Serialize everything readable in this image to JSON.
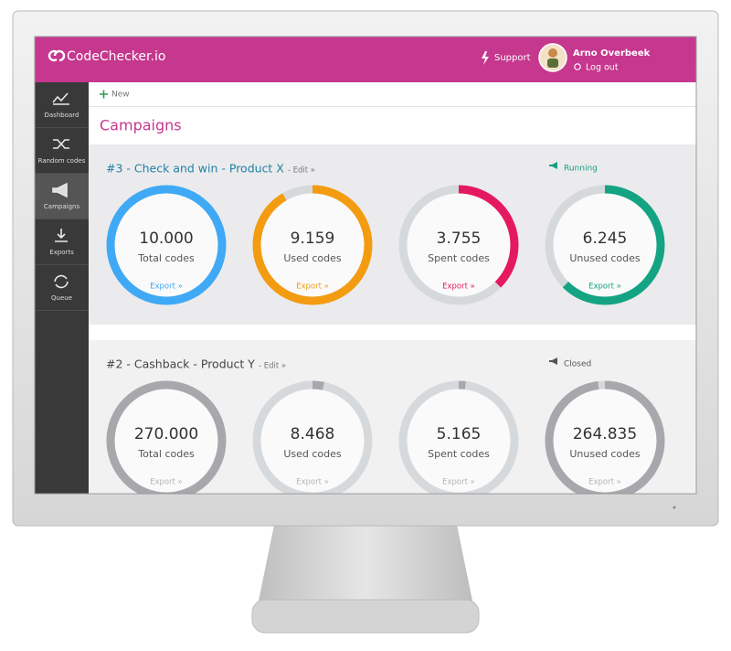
{
  "header": {
    "brand": "CodeChecker.io",
    "support": "Support",
    "user": "Arno Overbeek",
    "logout": "Log out"
  },
  "sidebar": [
    "Dashboard",
    "Random codes",
    "Campaigns",
    "Exports",
    "Queue"
  ],
  "toolbar": {
    "new": "New"
  },
  "page_title": "Campaigns",
  "campaigns": [
    {
      "title": "#3 - Check and win - Product X",
      "edit": "- Edit »",
      "status": "Running",
      "title_color": "#1f7fa6",
      "status_color": "#16a085",
      "stats": [
        {
          "value": "10.000",
          "label": "Total codes",
          "action": "Export »",
          "color": "#3fa9f5"
        },
        {
          "value": "9.159",
          "label": "Used codes",
          "action": "Export »",
          "color": "#f39c12"
        },
        {
          "value": "3.755",
          "label": "Spent codes",
          "action": "Export »",
          "color": "#e5195f"
        },
        {
          "value": "6.245",
          "label": "Unused codes",
          "action": "Export »",
          "color": "#15a483"
        }
      ]
    },
    {
      "title": "#2 - Cashback - Product Y",
      "edit": "- Edit »",
      "status": "Closed",
      "title_color": "#444444",
      "status_color": "#555555",
      "stats": [
        {
          "value": "270.000",
          "label": "Total codes",
          "action": "Export »",
          "color": "#a8a8ac"
        },
        {
          "value": "8.468",
          "label": "Used codes",
          "action": "Export »",
          "color": "#a8a8ac"
        },
        {
          "value": "5.165",
          "label": "Spent codes",
          "action": "Export »",
          "color": "#a8a8ac"
        },
        {
          "value": "264.835",
          "label": "Unused codes",
          "action": "Export »",
          "color": "#a8a8ac"
        }
      ]
    }
  ]
}
